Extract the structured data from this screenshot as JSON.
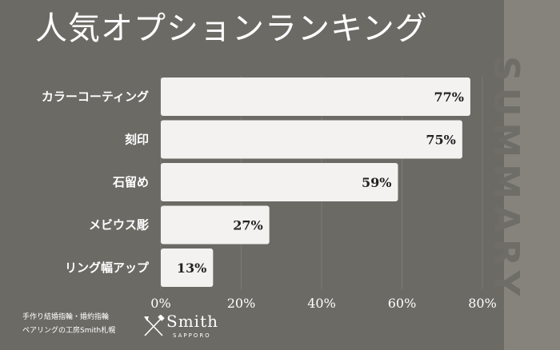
{
  "title": "人気オプションランキング",
  "side_text": "SUMMARY",
  "footer": {
    "line1": "手作り結婚指輪・婚約指輪",
    "line2": "ペアリングの工房Smith札幌"
  },
  "logo": {
    "name": "Smith",
    "sub": "SAPPORO",
    "icon": "crossed-tools-icon"
  },
  "colors": {
    "background": "#6b6a64",
    "bar": "#f4f2f0",
    "side_panel": "#85837c"
  },
  "chart_data": {
    "type": "bar",
    "orientation": "horizontal",
    "title": "人気オプションランキング",
    "categories": [
      "カラーコーティング",
      "刻印",
      "石留め",
      "メビウス彫",
      "リング幅アップ"
    ],
    "values": [
      77,
      75,
      59,
      27,
      13
    ],
    "data_labels": [
      "77%",
      "75%",
      "59%",
      "27%",
      "13%"
    ],
    "xlim": [
      0,
      80
    ],
    "xticks": [
      0,
      20,
      40,
      60,
      80
    ],
    "xtick_labels": [
      "0%",
      "20%",
      "40%",
      "60%",
      "80%"
    ],
    "grid": true,
    "xlabel": "",
    "ylabel": ""
  }
}
